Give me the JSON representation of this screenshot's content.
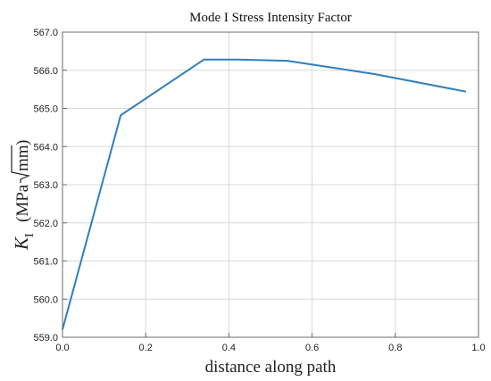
{
  "chart_data": {
    "type": "line",
    "title": "Mode I Stress Intensity Factor",
    "xlabel": "distance along path",
    "ylabel": {
      "symbol": "K",
      "subscript": "I",
      "unit_prefix": "(MPa",
      "sqrt_arg": "mm",
      "unit_suffix": ")"
    },
    "xlim": [
      0.0,
      1.0
    ],
    "ylim": [
      559.0,
      567.0
    ],
    "xticks": [
      0.0,
      0.2,
      0.4,
      0.6,
      0.8,
      1.0
    ],
    "xtick_labels": [
      "0.0",
      "0.2",
      "0.4",
      "0.6",
      "0.8",
      "1.0"
    ],
    "yticks": [
      559.0,
      560.0,
      561.0,
      562.0,
      563.0,
      564.0,
      565.0,
      566.0,
      567.0
    ],
    "ytick_labels": [
      "559.0",
      "560.0",
      "561.0",
      "562.0",
      "563.0",
      "564.0",
      "565.0",
      "566.0",
      "567.0"
    ],
    "grid": true,
    "series": [
      {
        "color": "#2e7fbf",
        "x": [
          0.0,
          0.14,
          0.34,
          0.42,
          0.54,
          0.75,
          0.97
        ],
        "y": [
          559.2,
          564.82,
          566.28,
          566.28,
          566.25,
          565.9,
          565.44
        ]
      }
    ]
  }
}
